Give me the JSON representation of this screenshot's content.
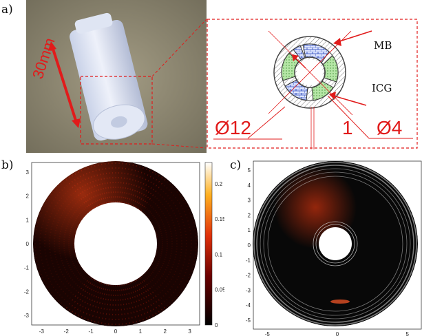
{
  "panels": {
    "a": {
      "label": "a)",
      "length_label": "30mm",
      "annotations": {
        "mb": "MB",
        "icg": "ICG",
        "outer_diameter": "Ø12",
        "wall": "1",
        "inner_diameter": "Ø4"
      }
    },
    "b": {
      "label": "b)",
      "x_ticks": [
        "-3",
        "-2",
        "-1",
        "0",
        "1",
        "2",
        "3"
      ],
      "y_ticks": [
        "3",
        "2",
        "1",
        "0",
        "-1",
        "-2",
        "-3"
      ],
      "colorbar_ticks": [
        "0.2",
        "0.15",
        "0.1",
        "0.05",
        "0"
      ]
    },
    "c": {
      "label": "c)",
      "x_ticks": [
        "-5",
        "0",
        "5"
      ],
      "y_ticks": [
        "5",
        "4",
        "3",
        "2",
        "1",
        "0",
        "-1",
        "-2",
        "-3",
        "-4",
        "-5"
      ]
    }
  },
  "colors": {
    "annotation_red": "#e11b1b",
    "photo_bg": "#8a8470",
    "phantom": "#d8dff0",
    "hot": "#ff3a10",
    "dark": "#050000"
  },
  "chart_data": [
    {
      "type": "heatmap",
      "panel": "b",
      "xlim": [
        -3.4,
        3.4
      ],
      "ylim": [
        -3.4,
        3.4
      ],
      "colorbar_range": [
        0,
        0.23
      ]
    },
    {
      "type": "heatmap",
      "panel": "c",
      "xlim": [
        -6,
        6
      ],
      "ylim": [
        -5.6,
        5.6
      ]
    }
  ]
}
